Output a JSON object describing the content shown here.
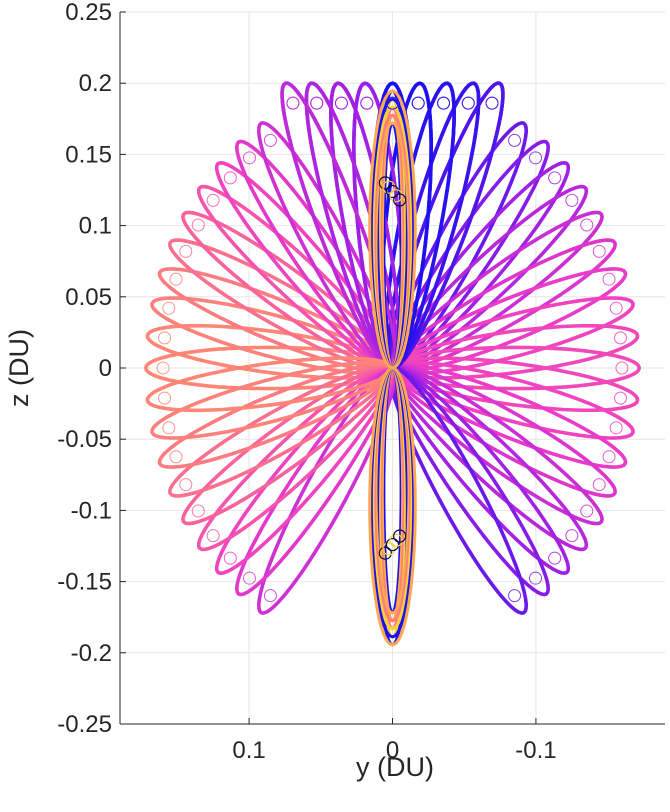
{
  "chart_data": {
    "type": "line",
    "title": "",
    "xlabel": "y (DU)",
    "ylabel": "z (DU)",
    "x_axis_reversed": true,
    "xlim": [
      0.19,
      -0.19
    ],
    "ylim": [
      -0.25,
      0.25
    ],
    "x_ticks": [
      0.1,
      0,
      -0.1
    ],
    "x_tick_labels": [
      "0.1",
      "0",
      "-0.1"
    ],
    "y_ticks": [
      0.25,
      0.2,
      0.15,
      0.1,
      0.05,
      0,
      -0.05,
      -0.1,
      -0.15,
      -0.2,
      -0.25
    ],
    "y_tick_labels": [
      "0.25",
      "0.2",
      "0.15",
      "0.1",
      "0.05",
      "0",
      "-0.05",
      "-0.1",
      "-0.15",
      "-0.2",
      "-0.25"
    ],
    "grid": true,
    "legend": "none",
    "family": {
      "description_free": true,
      "orbit_count": 56,
      "outer_radius": 0.172,
      "center_z_amplitude": 0.2,
      "petal_half_width": 0.0145,
      "node_marker_radius": 0.0035
    },
    "colors": {
      "axis": "#262626",
      "grid": "#e6e6e6",
      "blue": "#1a10f0",
      "purple": "#9a1ee6",
      "magenta": "#ee3cc8",
      "salmon": "#ff7e7e",
      "orange": "#ffa850",
      "yellow": "#f4d23a"
    }
  }
}
